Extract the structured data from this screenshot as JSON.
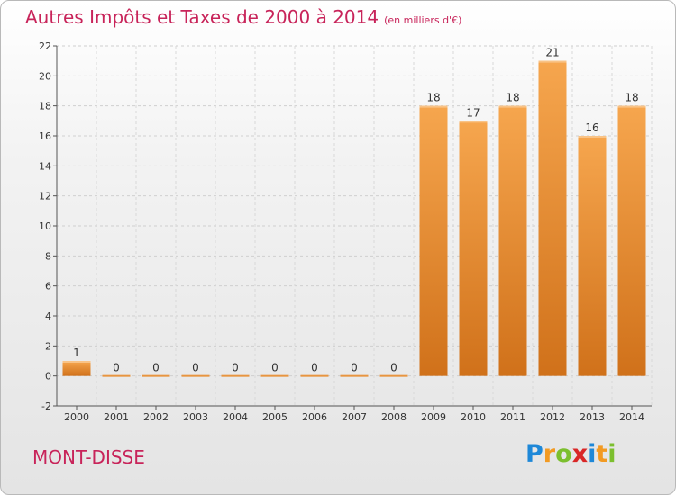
{
  "title": "Autres Impôts et Taxes de 2000 à 2014",
  "subtitle": "(en milliers d'€)",
  "town": "MONT-DISSE",
  "logo": {
    "letters": [
      "P",
      "r",
      "o",
      "x",
      "i",
      "t",
      "i"
    ],
    "colors": [
      "#1e88d8",
      "#f29a22",
      "#7cbf2e",
      "#d92727",
      "#1e88d8",
      "#f29a22",
      "#7cbf2e"
    ]
  },
  "colors": {
    "title": "#c8245a",
    "bar_light": "#f6a64e",
    "bar_dark": "#d97b1c",
    "grid": "#cccccc"
  },
  "chart_data": {
    "type": "bar",
    "categories": [
      "2000",
      "2001",
      "2002",
      "2003",
      "2004",
      "2005",
      "2006",
      "2007",
      "2008",
      "2009",
      "2010",
      "2011",
      "2012",
      "2013",
      "2014"
    ],
    "values": [
      1,
      0,
      0,
      0,
      0,
      0,
      0,
      0,
      0,
      18,
      17,
      18,
      21,
      16,
      18
    ],
    "labels": [
      "1",
      "0",
      "0",
      "0",
      "0",
      "0",
      "0",
      "0",
      "0",
      "18",
      "17",
      "18",
      "21",
      "16",
      "18"
    ],
    "yticks": [
      -2,
      0,
      2,
      4,
      6,
      8,
      10,
      12,
      14,
      16,
      18,
      20,
      22
    ],
    "ylim": [
      -2,
      22
    ],
    "grid": true
  }
}
